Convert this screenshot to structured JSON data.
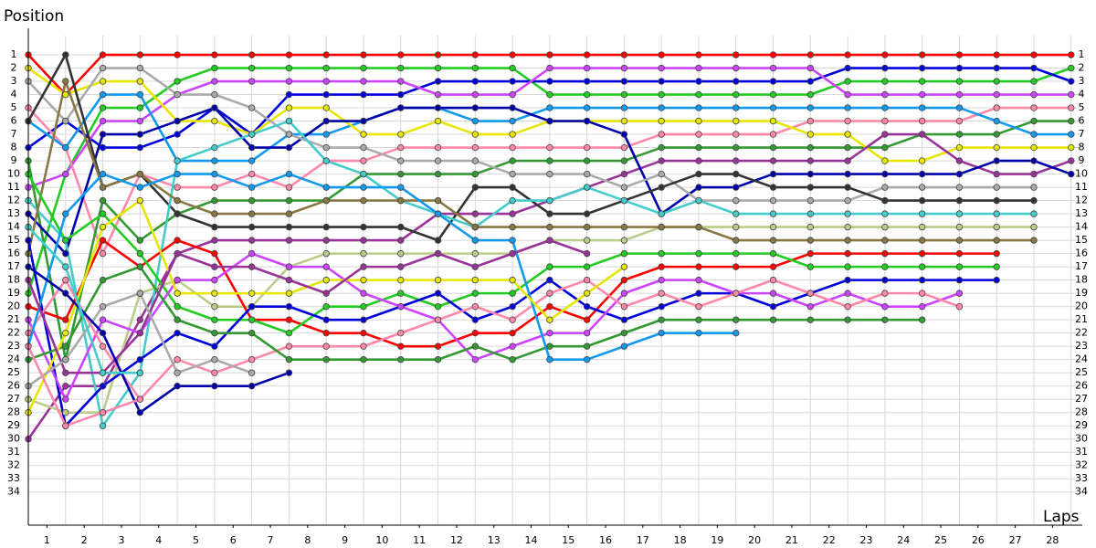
{
  "chart_data": {
    "type": "line",
    "y_axis_label": "Position",
    "x_axis_label": "Laps",
    "x": [
      0,
      1,
      2,
      3,
      4,
      5,
      6,
      7,
      8,
      9,
      10,
      11,
      12,
      13,
      14,
      15,
      16,
      17,
      18,
      19,
      20,
      21,
      22,
      23,
      24,
      25,
      26,
      27,
      28
    ],
    "xlim": [
      0,
      28.3
    ],
    "xticks": [
      {
        "value": 0.5,
        "label": "1"
      },
      {
        "value": 1.5,
        "label": "2"
      },
      {
        "value": 2.5,
        "label": "3"
      },
      {
        "value": 3.5,
        "label": "4"
      },
      {
        "value": 4.5,
        "label": "5"
      },
      {
        "value": 5.5,
        "label": "6"
      },
      {
        "value": 6.5,
        "label": "7"
      },
      {
        "value": 7.5,
        "label": "8"
      },
      {
        "value": 8.5,
        "label": "9"
      },
      {
        "value": 9.5,
        "label": "10"
      },
      {
        "value": 10.5,
        "label": "11"
      },
      {
        "value": 11.5,
        "label": "12"
      },
      {
        "value": 12.5,
        "label": "13"
      },
      {
        "value": 13.5,
        "label": "14"
      },
      {
        "value": 14.5,
        "label": "15"
      },
      {
        "value": 15.5,
        "label": "16"
      },
      {
        "value": 16.5,
        "label": "17"
      },
      {
        "value": 17.5,
        "label": "18"
      },
      {
        "value": 18.5,
        "label": "19"
      },
      {
        "value": 19.5,
        "label": "20"
      },
      {
        "value": 20.5,
        "label": "21"
      },
      {
        "value": 21.5,
        "label": "22"
      },
      {
        "value": 22.5,
        "label": "23"
      },
      {
        "value": 23.5,
        "label": "24"
      },
      {
        "value": 24.5,
        "label": "25"
      },
      {
        "value": 25.5,
        "label": "26"
      },
      {
        "value": 26.5,
        "label": "27"
      },
      {
        "value": 27.5,
        "label": "28"
      }
    ],
    "ylim": [
      36.5,
      -1
    ],
    "yticks": [
      1,
      2,
      3,
      4,
      5,
      6,
      7,
      8,
      9,
      10,
      11,
      12,
      13,
      14,
      15,
      16,
      17,
      18,
      19,
      20,
      21,
      22,
      23,
      24,
      25,
      26,
      27,
      28,
      29,
      30,
      31,
      32,
      33,
      34
    ],
    "grid": true,
    "series": [
      {
        "color": "#ff0000",
        "values": [
          1,
          4,
          1,
          1,
          1,
          1,
          1,
          1,
          1,
          1,
          1,
          1,
          1,
          1,
          1,
          1,
          1,
          1,
          1,
          1,
          1,
          1,
          1,
          1,
          1,
          1,
          1,
          1,
          1
        ]
      },
      {
        "color": "#22cc22",
        "values": [
          19,
          10,
          5,
          5,
          3,
          2,
          2,
          2,
          2,
          2,
          2,
          2,
          2,
          2,
          4,
          4,
          4,
          4,
          4,
          4,
          4,
          4,
          3,
          3,
          3,
          3,
          3,
          3,
          2
        ]
      },
      {
        "color": "#0000dd",
        "values": [
          8,
          6,
          8,
          8,
          7,
          5,
          7,
          4,
          4,
          4,
          4,
          3,
          3,
          3,
          3,
          3,
          3,
          3,
          3,
          3,
          3,
          3,
          2,
          2,
          2,
          2,
          2,
          2,
          3
        ]
      },
      {
        "color": "#cc44ff",
        "values": [
          11,
          10,
          6,
          6,
          4,
          3,
          3,
          3,
          3,
          3,
          3,
          4,
          4,
          4,
          2,
          2,
          2,
          2,
          2,
          2,
          2,
          2,
          4,
          4,
          4,
          4,
          4,
          4,
          4
        ]
      },
      {
        "color": "#ff88aa",
        "values": [
          5,
          8,
          16,
          10,
          11,
          11,
          10,
          11,
          9,
          9,
          8,
          8,
          8,
          8,
          8,
          8,
          8,
          7,
          7,
          7,
          7,
          6,
          6,
          6,
          6,
          6,
          5,
          5,
          5
        ]
      },
      {
        "color": "#339933",
        "values": [
          9,
          24,
          12,
          15,
          13,
          12,
          12,
          12,
          12,
          10,
          10,
          10,
          10,
          9,
          9,
          9,
          9,
          8,
          8,
          8,
          8,
          8,
          8,
          8,
          7,
          7,
          7,
          6,
          6
        ]
      },
      {
        "color": "#1199ee",
        "values": [
          6,
          8,
          4,
          4,
          9,
          9,
          9,
          7,
          7,
          6,
          5,
          5,
          6,
          6,
          5,
          5,
          5,
          5,
          5,
          5,
          5,
          5,
          5,
          5,
          5,
          5,
          6,
          7,
          7
        ]
      },
      {
        "color": "#e6e600",
        "values": [
          2,
          4,
          3,
          3,
          6,
          6,
          7,
          5,
          5,
          7,
          7,
          6,
          7,
          7,
          6,
          6,
          6,
          6,
          6,
          6,
          6,
          7,
          7,
          9,
          9,
          8,
          8,
          8,
          8
        ]
      },
      {
        "color": "#993399",
        "values": [
          30,
          26,
          26,
          21,
          16,
          15,
          15,
          15,
          15,
          15,
          15,
          13,
          13,
          13,
          12,
          11,
          10,
          9,
          9,
          9,
          9,
          9,
          9,
          7,
          7,
          9,
          10,
          10,
          9
        ]
      },
      {
        "color": "#0000aa",
        "values": [
          13,
          16,
          7,
          7,
          6,
          5,
          8,
          8,
          6,
          6,
          5,
          5,
          5,
          5,
          6,
          6,
          7,
          13,
          11,
          11,
          10,
          10,
          10,
          10,
          10,
          10,
          9,
          9,
          10
        ]
      },
      {
        "color": "#aaaaaa",
        "values": [
          3,
          6,
          2,
          2,
          4,
          4,
          5,
          7,
          8,
          8,
          9,
          9,
          9,
          10,
          10,
          10,
          11,
          10,
          12,
          12,
          12,
          12,
          12,
          11,
          11,
          11,
          11,
          11,
          null
        ]
      },
      {
        "color": "#333333",
        "values": [
          6,
          1,
          11,
          10,
          13,
          14,
          14,
          14,
          14,
          14,
          14,
          15,
          11,
          11,
          13,
          13,
          12,
          11,
          10,
          10,
          11,
          11,
          11,
          12,
          12,
          12,
          12,
          12,
          null
        ]
      },
      {
        "color": "#44cccc",
        "values": [
          12,
          15,
          29,
          25,
          9,
          8,
          7,
          6,
          9,
          10,
          12,
          13,
          14,
          12,
          12,
          11,
          12,
          13,
          12,
          13,
          13,
          13,
          13,
          13,
          13,
          13,
          13,
          13,
          null
        ]
      },
      {
        "color": "#bbcc88",
        "values": [
          27,
          28,
          28,
          19,
          18,
          20,
          20,
          17,
          16,
          16,
          16,
          16,
          16,
          16,
          15,
          15,
          15,
          14,
          14,
          14,
          14,
          14,
          14,
          14,
          14,
          14,
          14,
          14,
          null
        ]
      },
      {
        "color": "#887744",
        "values": [
          16,
          3,
          11,
          10,
          12,
          13,
          13,
          13,
          12,
          12,
          12,
          12,
          14,
          14,
          14,
          14,
          14,
          14,
          14,
          15,
          15,
          15,
          15,
          15,
          15,
          15,
          15,
          15,
          null
        ]
      },
      {
        "color": "#ff0000",
        "values": [
          20,
          21,
          15,
          17,
          15,
          16,
          21,
          21,
          22,
          22,
          23,
          23,
          22,
          22,
          20,
          21,
          18,
          17,
          17,
          17,
          17,
          16,
          16,
          16,
          16,
          16,
          16,
          null,
          null
        ]
      },
      {
        "color": "#22cc22",
        "values": [
          10,
          15,
          13,
          16,
          20,
          21,
          21,
          22,
          20,
          20,
          19,
          20,
          19,
          19,
          17,
          17,
          16,
          16,
          16,
          16,
          16,
          17,
          17,
          17,
          17,
          17,
          17,
          null,
          null
        ]
      },
      {
        "color": "#0000dd",
        "values": [
          15,
          29,
          26,
          24,
          22,
          23,
          20,
          20,
          21,
          21,
          20,
          19,
          21,
          20,
          18,
          20,
          21,
          20,
          19,
          19,
          20,
          19,
          18,
          18,
          18,
          18,
          18,
          null,
          null
        ]
      },
      {
        "color": "#cc44ff",
        "values": [
          21,
          27,
          21,
          22,
          18,
          18,
          16,
          17,
          17,
          19,
          20,
          21,
          24,
          23,
          22,
          22,
          19,
          18,
          18,
          19,
          19,
          20,
          19,
          20,
          20,
          19,
          null,
          null,
          null
        ]
      },
      {
        "color": "#ff88aa",
        "values": [
          22,
          18,
          23,
          27,
          24,
          25,
          24,
          23,
          23,
          23,
          22,
          21,
          20,
          21,
          19,
          18,
          20,
          19,
          20,
          19,
          18,
          19,
          20,
          19,
          19,
          20,
          null,
          null,
          null
        ]
      },
      {
        "color": "#339933",
        "values": [
          24,
          23,
          18,
          17,
          21,
          22,
          22,
          24,
          24,
          24,
          24,
          24,
          23,
          24,
          23,
          23,
          22,
          21,
          21,
          21,
          21,
          21,
          21,
          21,
          21,
          null,
          null,
          null,
          null
        ]
      },
      {
        "color": "#1199ee",
        "values": [
          23,
          13,
          10,
          11,
          10,
          10,
          11,
          10,
          11,
          11,
          11,
          13,
          15,
          15,
          24,
          24,
          23,
          22,
          22,
          22,
          null,
          null,
          null,
          null,
          null,
          null,
          null,
          null,
          null
        ]
      },
      {
        "color": "#e6e600",
        "values": [
          28,
          22,
          14,
          12,
          19,
          19,
          19,
          19,
          18,
          18,
          18,
          18,
          18,
          18,
          21,
          19,
          17,
          null,
          null,
          null,
          null,
          null,
          null,
          null,
          null,
          null,
          null,
          null,
          null
        ]
      },
      {
        "color": "#993399",
        "values": [
          18,
          25,
          25,
          22,
          16,
          17,
          17,
          18,
          19,
          17,
          17,
          16,
          17,
          16,
          15,
          16,
          null,
          null,
          null,
          null,
          null,
          null,
          null,
          null,
          null,
          null,
          null,
          null,
          null
        ]
      },
      {
        "color": "#aaaaaa",
        "values": [
          26,
          24,
          20,
          19,
          25,
          24,
          25,
          null,
          null,
          null,
          null,
          null,
          null,
          null,
          null,
          null,
          null,
          null,
          null,
          null,
          null,
          null,
          null,
          null,
          null,
          null,
          null,
          null,
          null
        ]
      },
      {
        "color": "#0000aa",
        "values": [
          17,
          19,
          22,
          28,
          26,
          26,
          26,
          25,
          null,
          null,
          null,
          null,
          null,
          null,
          null,
          null,
          null,
          null,
          null,
          null,
          null,
          null,
          null,
          null,
          null,
          null,
          null,
          null,
          null
        ]
      },
      {
        "color": "#44cccc",
        "values": [
          14,
          17,
          25,
          25,
          null,
          null,
          null,
          null,
          null,
          null,
          null,
          null,
          null,
          null,
          null,
          null,
          null,
          null,
          null,
          null,
          null,
          null,
          null,
          null,
          null,
          null,
          null,
          null,
          null
        ]
      },
      {
        "color": "#ff88aa",
        "values": [
          23,
          29,
          28,
          27,
          null,
          null,
          null,
          null,
          null,
          null,
          null,
          null,
          null,
          null,
          null,
          null,
          null,
          null,
          null,
          null,
          null,
          null,
          null,
          null,
          null,
          null,
          null,
          null,
          null
        ]
      }
    ]
  }
}
